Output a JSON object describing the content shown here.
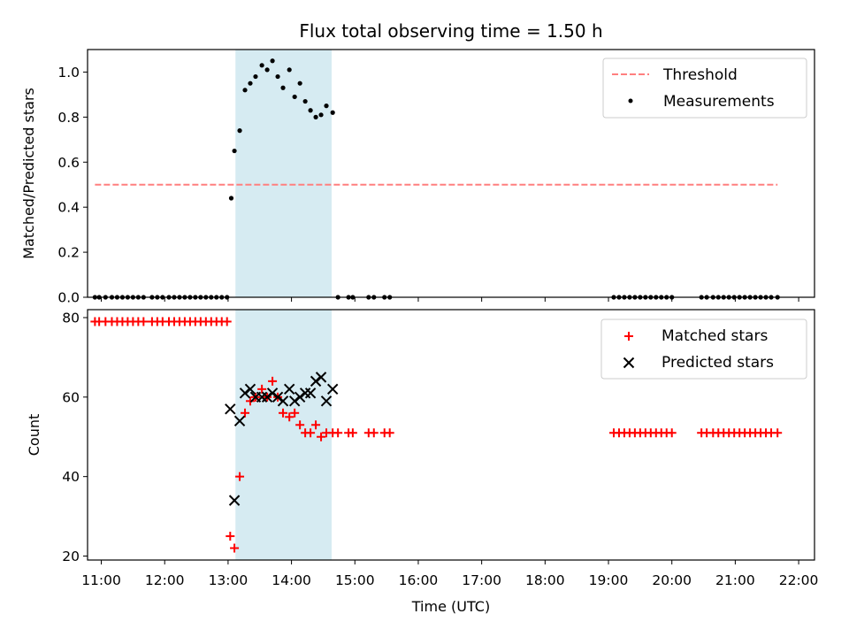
{
  "chart_data": [
    {
      "type": "scatter",
      "title": "Flux total observing time = 1.50 h",
      "xlabel": "",
      "ylabel": "Matched/Predicted stars",
      "xlim": [
        "10:47",
        "22:15"
      ],
      "ylim": [
        0.0,
        1.1
      ],
      "yticks": [
        "0.0",
        "0.2",
        "0.4",
        "0.6",
        "0.8",
        "1.0"
      ],
      "shaded_span": {
        "x": [
          "13:07",
          "14:38"
        ],
        "color": "#add8e6"
      },
      "legend": {
        "position": "top-right",
        "entries": [
          "Threshold",
          "Measurements"
        ]
      },
      "series": [
        {
          "name": "Threshold",
          "kind": "dashed-line",
          "color": "#ff7f7f",
          "x": [
            "10:54",
            "21:40"
          ],
          "y": [
            0.5,
            0.5
          ]
        },
        {
          "name": "Measurements",
          "kind": "points",
          "color": "#000000",
          "x": [
            "10:54",
            "10:58",
            "11:04",
            "11:10",
            "11:15",
            "11:20",
            "11:25",
            "11:30",
            "11:35",
            "11:40",
            "11:48",
            "11:53",
            "11:58",
            "12:04",
            "12:09",
            "12:14",
            "12:19",
            "12:24",
            "12:29",
            "12:34",
            "12:39",
            "12:44",
            "12:49",
            "12:54",
            "12:59",
            "13:03",
            "13:06",
            "13:11",
            "13:16",
            "13:21",
            "13:26",
            "13:32",
            "13:37",
            "13:42",
            "13:47",
            "13:52",
            "13:58",
            "14:03",
            "14:08",
            "14:13",
            "14:18",
            "14:23",
            "14:28",
            "14:33",
            "14:39",
            "14:44",
            "14:54",
            "14:58",
            "15:13",
            "15:18",
            "15:28",
            "15:33",
            "19:05",
            "19:10",
            "19:15",
            "19:20",
            "19:25",
            "19:30",
            "19:35",
            "19:40",
            "19:45",
            "19:50",
            "19:55",
            "20:00",
            "20:28",
            "20:33",
            "20:39",
            "20:44",
            "20:49",
            "20:54",
            "20:59",
            "21:04",
            "21:09",
            "21:14",
            "21:19",
            "21:24",
            "21:29",
            "21:34",
            "21:40"
          ],
          "y": [
            0,
            0,
            0,
            0,
            0,
            0,
            0,
            0,
            0,
            0,
            0,
            0,
            0,
            0,
            0,
            0,
            0,
            0,
            0,
            0,
            0,
            0,
            0,
            0,
            0,
            0.44,
            0.65,
            0.74,
            0.92,
            0.95,
            0.98,
            1.03,
            1.01,
            1.05,
            0.98,
            0.93,
            1.01,
            0.89,
            0.95,
            0.87,
            0.83,
            0.8,
            0.81,
            0.85,
            0.82,
            0,
            0,
            0,
            0,
            0,
            0,
            0,
            0,
            0,
            0,
            0,
            0,
            0,
            0,
            0,
            0,
            0,
            0,
            0,
            0,
            0,
            0,
            0,
            0,
            0,
            0,
            0,
            0,
            0,
            0,
            0,
            0,
            0,
            0
          ]
        }
      ]
    },
    {
      "type": "scatter",
      "title": "",
      "xlabel": "Time (UTC)",
      "ylabel": "Count",
      "xlim": [
        "10:47",
        "22:15"
      ],
      "ylim": [
        19,
        82
      ],
      "yticks": [
        "20",
        "40",
        "60",
        "80"
      ],
      "xticks": [
        "11:00",
        "12:00",
        "13:00",
        "14:00",
        "15:00",
        "16:00",
        "17:00",
        "18:00",
        "19:00",
        "20:00",
        "21:00",
        "22:00"
      ],
      "shaded_span": {
        "x": [
          "13:07",
          "14:38"
        ],
        "color": "#add8e6"
      },
      "legend": {
        "position": "top-right",
        "entries": [
          "Matched stars",
          "Predicted stars"
        ]
      },
      "series": [
        {
          "name": "Matched stars",
          "marker": "+",
          "color": "#ff0000",
          "x": [
            "10:54",
            "10:58",
            "11:04",
            "11:10",
            "11:15",
            "11:20",
            "11:25",
            "11:30",
            "11:35",
            "11:40",
            "11:48",
            "11:53",
            "11:58",
            "12:04",
            "12:09",
            "12:14",
            "12:19",
            "12:24",
            "12:29",
            "12:34",
            "12:39",
            "12:44",
            "12:49",
            "12:54",
            "12:59",
            "13:02",
            "13:06",
            "13:11",
            "13:16",
            "13:21",
            "13:26",
            "13:32",
            "13:37",
            "13:42",
            "13:47",
            "13:52",
            "13:58",
            "14:03",
            "14:08",
            "14:13",
            "14:18",
            "14:23",
            "14:28",
            "14:33",
            "14:39",
            "14:44",
            "14:54",
            "14:58",
            "15:13",
            "15:18",
            "15:28",
            "15:33",
            "19:05",
            "19:10",
            "19:15",
            "19:20",
            "19:25",
            "19:30",
            "19:35",
            "19:40",
            "19:45",
            "19:50",
            "19:55",
            "20:00",
            "20:28",
            "20:33",
            "20:39",
            "20:44",
            "20:49",
            "20:54",
            "20:59",
            "21:04",
            "21:09",
            "21:14",
            "21:19",
            "21:24",
            "21:29",
            "21:34",
            "21:40"
          ],
          "y": [
            79,
            79,
            79,
            79,
            79,
            79,
            79,
            79,
            79,
            79,
            79,
            79,
            79,
            79,
            79,
            79,
            79,
            79,
            79,
            79,
            79,
            79,
            79,
            79,
            79,
            25,
            22,
            40,
            56,
            59,
            60,
            62,
            60,
            64,
            60,
            56,
            55,
            56,
            53,
            51,
            51,
            53,
            50,
            51,
            51,
            51,
            51,
            51,
            51,
            51,
            51,
            51,
            51,
            51,
            51,
            51,
            51,
            51,
            51,
            51,
            51,
            51,
            51,
            51,
            51,
            51,
            51,
            51,
            51,
            51,
            51,
            51,
            51,
            51,
            51,
            51,
            51,
            51,
            51
          ]
        },
        {
          "name": "Predicted stars",
          "marker": "x",
          "color": "#000000",
          "x": [
            "13:02",
            "13:06",
            "13:11",
            "13:16",
            "13:21",
            "13:26",
            "13:32",
            "13:37",
            "13:42",
            "13:47",
            "13:52",
            "13:58",
            "14:03",
            "14:08",
            "14:13",
            "14:18",
            "14:23",
            "14:28",
            "14:33",
            "14:39"
          ],
          "y": [
            57,
            34,
            54,
            61,
            62,
            60,
            60,
            60,
            61,
            60,
            59,
            62,
            59,
            60,
            61,
            61,
            64,
            65,
            59,
            62
          ]
        }
      ]
    }
  ]
}
